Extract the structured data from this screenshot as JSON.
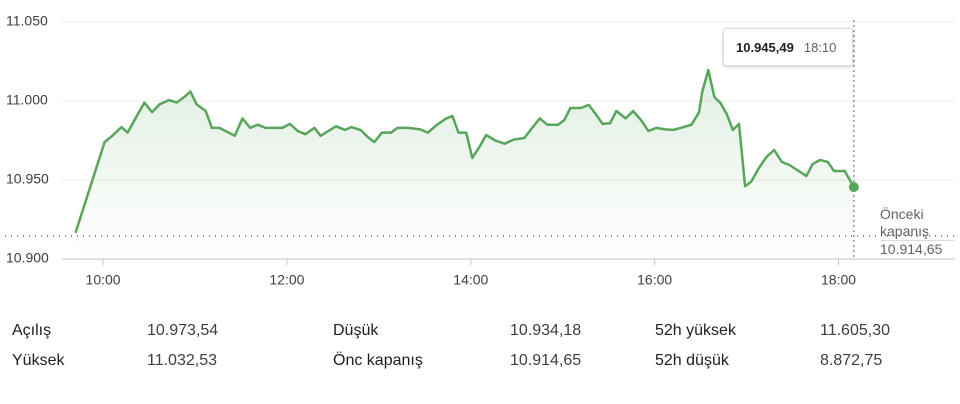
{
  "chart_data": {
    "type": "line",
    "x": [
      582,
      601,
      606,
      612,
      616,
      622,
      627,
      632,
      637,
      643,
      648,
      653,
      657,
      661,
      667,
      671,
      676,
      682,
      686,
      691,
      696,
      701,
      706,
      712,
      717,
      722,
      727,
      732,
      738,
      742,
      747,
      752,
      758,
      762,
      768,
      773,
      777,
      782,
      788,
      792,
      799,
      807,
      812,
      818,
      824,
      828,
      832,
      837,
      841,
      846,
      850,
      856,
      862,
      868,
      875,
      880,
      885,
      890,
      897,
      901,
      905,
      912,
      917,
      922,
      926,
      931,
      935,
      941,
      946,
      951,
      956,
      961,
      967,
      972,
      977,
      984,
      989,
      991,
      995,
      999,
      1003,
      1007,
      1011,
      1015,
      1019,
      1023,
      1028,
      1033,
      1038,
      1043,
      1048,
      1053,
      1059,
      1063,
      1068,
      1073,
      1077,
      1084,
      1090
    ],
    "series": [
      {
        "color": "#58a55c",
        "values": [
          10916.5,
          10974,
          10978,
          10983.5,
          10980,
          10990.5,
          10999,
          10993,
          10998,
          11000.6,
          10999,
          11002.5,
          11006,
          10998,
          10993.7,
          10983,
          10983,
          10980,
          10978,
          10989,
          10983,
          10985,
          10983,
          10983,
          10983,
          10985.5,
          10981,
          10979,
          10983,
          10978,
          10981,
          10984,
          10981.7,
          10983.5,
          10981.7,
          10977,
          10974,
          10980,
          10980,
          10983,
          10983,
          10982,
          10980,
          10985,
          10989,
          10990.5,
          10980,
          10980,
          10964,
          10971.5,
          10978.5,
          10975,
          10973,
          10975.6,
          10976.6,
          10983,
          10989,
          10985,
          10985,
          10988,
          10995.6,
          10995.6,
          10997.5,
          10991,
          10985.5,
          10986,
          10993.7,
          10989,
          10993.7,
          10988,
          10981,
          10983,
          10982,
          10981.7,
          10983,
          10985,
          10993,
          11005.7,
          11019.6,
          11002.5,
          10998.7,
          10991.8,
          10981.7,
          10985.5,
          10946,
          10949,
          10957.6,
          10964.6,
          10969,
          10961.4,
          10959.5,
          10956.3,
          10952.5,
          10960,
          10962.7,
          10961.4,
          10955.7,
          10955.7,
          10945.49
        ]
      }
    ],
    "xlim": [
      536,
      1156
    ],
    "xticks": [
      {
        "value": 600,
        "label": "10:00"
      },
      {
        "value": 720,
        "label": "12:00"
      },
      {
        "value": 840,
        "label": "14:00"
      },
      {
        "value": 960,
        "label": "16:00"
      },
      {
        "value": 1080,
        "label": "18:00"
      }
    ],
    "ylim": [
      10900,
      11050
    ],
    "yticks": [
      {
        "value": 10900,
        "label": "10.900"
      },
      {
        "value": 10950,
        "label": "10.950"
      },
      {
        "value": 11000,
        "label": "11.000"
      },
      {
        "value": 11050,
        "label": "11.050"
      }
    ],
    "grid": true,
    "previous_close": {
      "label": "Önceki kapanış",
      "value": 10914.65,
      "value_label": "10.914,65"
    },
    "tooltip": {
      "price": "10.945,49",
      "time": "18:10"
    }
  },
  "stats": [
    [
      {
        "label": "Açılış",
        "value": "10.973,54"
      },
      {
        "label": "Düşük",
        "value": "10.934,18"
      },
      {
        "label": "52h yüksek",
        "value": "11.605,30"
      }
    ],
    [
      {
        "label": "Yüksek",
        "value": "11.032,53"
      },
      {
        "label": "Önc kapanış",
        "value": "10.914,65"
      },
      {
        "label": "52h düşük",
        "value": "8.872,75"
      }
    ]
  ]
}
